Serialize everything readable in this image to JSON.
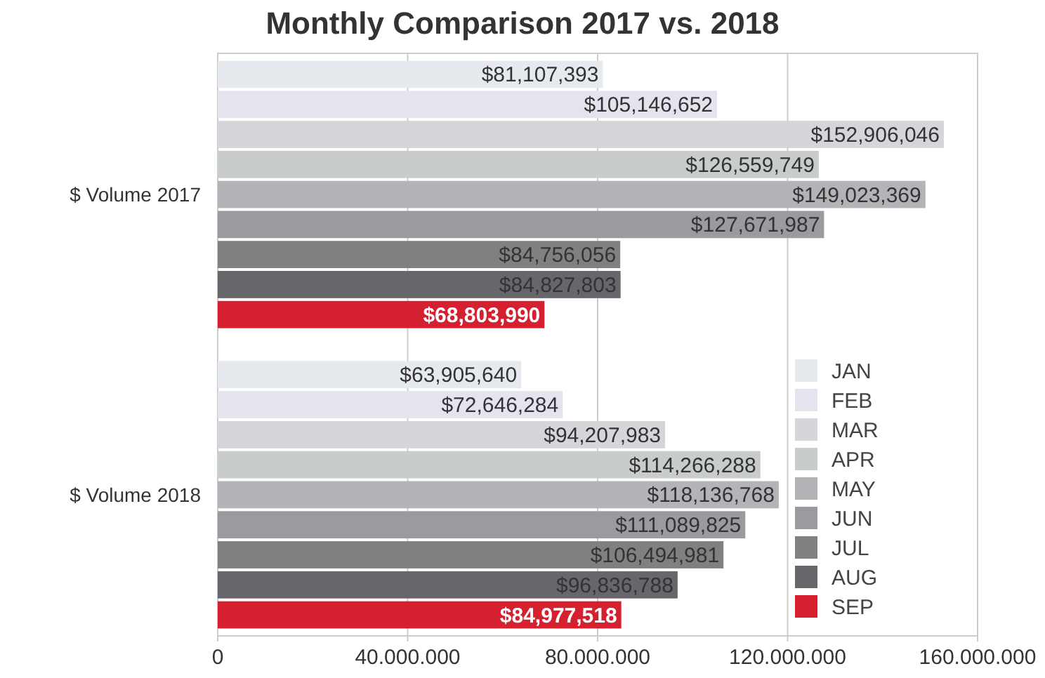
{
  "chart_data": {
    "type": "bar",
    "orientation": "horizontal",
    "title": "Monthly Comparison 2017 vs. 2018",
    "categories": [
      "$ Volume 2017",
      "$ Volume 2018"
    ],
    "series": [
      {
        "name": "JAN",
        "color": "#e6e9ed",
        "values": [
          81107393,
          63905640
        ],
        "value_labels": [
          "$81,107,393",
          "$63,905,640"
        ]
      },
      {
        "name": "FEB",
        "color": "#e4e4ef",
        "values": [
          105146652,
          72646284
        ],
        "value_labels": [
          "$105,146,652",
          "$72,646,284"
        ]
      },
      {
        "name": "MAR",
        "color": "#d6d6da",
        "values": [
          152906046,
          94207983
        ],
        "value_labels": [
          "$152,906,046",
          "$94,207,983"
        ]
      },
      {
        "name": "APR",
        "color": "#c8ccca",
        "values": [
          126559749,
          114266288
        ],
        "value_labels": [
          "$126,559,749",
          "$114,266,288"
        ]
      },
      {
        "name": "MAY",
        "color": "#b4b4b8",
        "values": [
          149023369,
          118136768
        ],
        "value_labels": [
          "$149,023,369",
          "$118,136,768"
        ]
      },
      {
        "name": "JUN",
        "color": "#9b9b9f",
        "values": [
          127671987,
          111089825
        ],
        "value_labels": [
          "$127,671,987",
          "$111,089,825"
        ]
      },
      {
        "name": "JUL",
        "color": "#808080",
        "values": [
          84756056,
          106494981
        ],
        "value_labels": [
          "$84,756,056",
          "$106,494,981"
        ]
      },
      {
        "name": "AUG",
        "color": "#66666b",
        "values": [
          84827803,
          96836788
        ],
        "value_labels": [
          "$84,827,803",
          "$96,836,788"
        ]
      },
      {
        "name": "SEP",
        "color": "#d52030",
        "values": [
          68803990,
          84977518
        ],
        "value_labels": [
          "$68,803,990",
          "$84,977,518"
        ]
      }
    ],
    "xlim": [
      0,
      160000000
    ],
    "xticks": [
      0,
      {
        "value": 40000000,
        "label": "40.000.000"
      },
      {
        "value": 80000000,
        "label": "80.000.000"
      },
      {
        "value": 120000000,
        "label": "120.000.000"
      },
      {
        "value": 160000000,
        "label": "160.000.000"
      }
    ],
    "grid": "x",
    "legend": "bottom right"
  }
}
